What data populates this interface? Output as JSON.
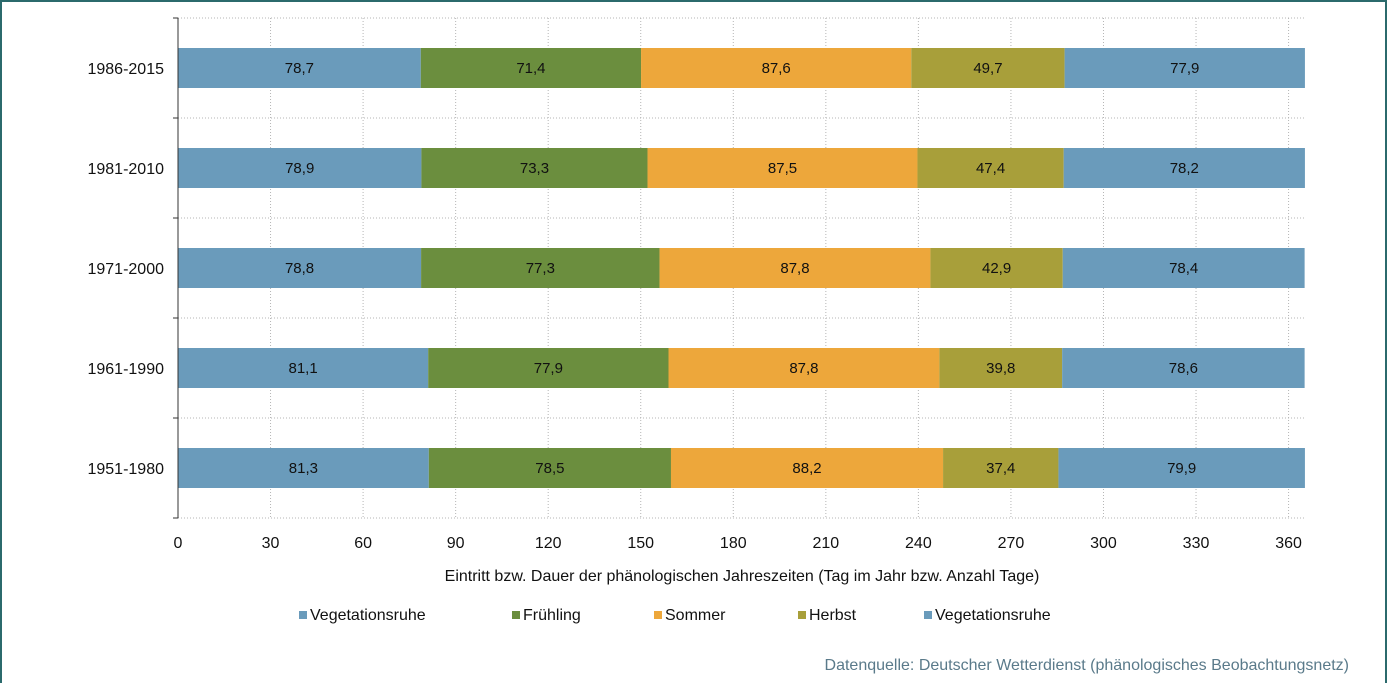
{
  "chart_data": {
    "type": "bar",
    "orientation": "horizontal",
    "stacked": true,
    "categories": [
      "1986-2015",
      "1981-2010",
      "1971-2000",
      "1961-1990",
      "1951-1980"
    ],
    "series": [
      {
        "name": "Vegetationsruhe",
        "color": "#6a9bbb",
        "values": [
          78.7,
          78.9,
          78.8,
          81.1,
          81.3
        ]
      },
      {
        "name": "Frühling",
        "color": "#6b8e3e",
        "values": [
          71.4,
          73.3,
          77.3,
          77.9,
          78.5
        ]
      },
      {
        "name": "Sommer",
        "color": "#eda73b",
        "values": [
          87.6,
          87.5,
          87.8,
          87.8,
          88.2
        ]
      },
      {
        "name": "Herbst",
        "color": "#a89f3a",
        "values": [
          49.7,
          47.4,
          42.9,
          39.8,
          37.4
        ]
      },
      {
        "name": "Vegetationsruhe",
        "color": "#6a9bbb",
        "values": [
          77.9,
          78.2,
          78.4,
          78.6,
          79.9
        ]
      }
    ],
    "xticks": [
      "0",
      "30",
      "60",
      "90",
      "120",
      "150",
      "180",
      "210",
      "240",
      "270",
      "300",
      "330",
      "360"
    ],
    "xlim": [
      0,
      365
    ],
    "xlabel": "Eintritt bzw. Dauer der  phänologischen  Jahreszeiten (Tag im Jahr bzw. Anzahl Tage)",
    "ylabel": "",
    "grid": true,
    "legend": "bottom",
    "source": "Datenquelle: Deutscher Wetterdienst (phänologisches  Beobachtungsnetz)"
  }
}
